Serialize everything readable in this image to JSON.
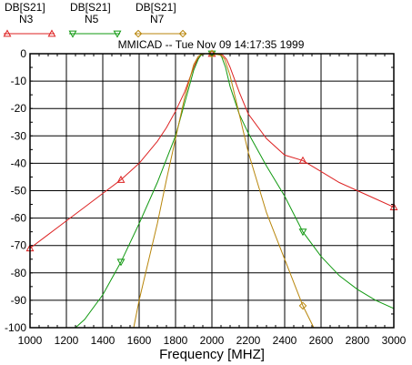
{
  "chart_data": {
    "type": "line",
    "title": "MMICAD -- Tue Nov 09 14:17:35 1999",
    "xlabel": "Frequency [MHZ]",
    "ylabel": "",
    "xlim": [
      1000,
      3000
    ],
    "ylim": [
      -100,
      0
    ],
    "x_ticks": [
      "1000",
      "1200",
      "1400",
      "1600",
      "1800",
      "2000",
      "2200",
      "2400",
      "2600",
      "2800",
      "3000"
    ],
    "y_ticks": [
      "0",
      "-10",
      "-20",
      "-30",
      "-40",
      "-50",
      "-60",
      "-70",
      "-80",
      "-90",
      "-100"
    ],
    "grid": true,
    "legend_position": "top-left",
    "series": [
      {
        "name": "N3",
        "legend_header": "DB[S21]",
        "color": "#dd2222",
        "marker": "triangle-up-icon",
        "x": [
          1000,
          1100,
          1200,
          1300,
          1400,
          1500,
          1600,
          1700,
          1750,
          1800,
          1850,
          1900,
          1920,
          1940,
          1960,
          2000,
          2040,
          2060,
          2080,
          2100,
          2150,
          2200,
          2300,
          2400,
          2500,
          2600,
          2700,
          2800,
          2900,
          3000
        ],
        "y": [
          -71,
          -66,
          -61,
          -56,
          -51,
          -46,
          -40,
          -32,
          -27,
          -21,
          -14,
          -5,
          -2,
          -0.5,
          0,
          0,
          0,
          -0.5,
          -2,
          -5,
          -14,
          -22,
          -31,
          -37,
          -39,
          -43,
          -47,
          -50,
          -53,
          -56
        ],
        "marker_x": [
          1000,
          1500,
          2000,
          2500,
          3000
        ]
      },
      {
        "name": "N5",
        "legend_header": "DB[S21]",
        "color": "#119911",
        "marker": "triangle-down-icon",
        "x": [
          1250,
          1300,
          1400,
          1500,
          1600,
          1700,
          1800,
          1850,
          1900,
          1925,
          1940,
          1960,
          2000,
          2050,
          2075,
          2100,
          2150,
          2200,
          2300,
          2400,
          2500,
          2600,
          2700,
          2800,
          2900,
          3000
        ],
        "y": [
          -100,
          -97,
          -88,
          -76,
          -62,
          -47,
          -30,
          -18,
          -6,
          -2,
          -0.5,
          0,
          0,
          -0.5,
          -5,
          -12,
          -22,
          -29,
          -41,
          -52,
          -65,
          -74,
          -81,
          -86,
          -90,
          -93
        ],
        "marker_x": [
          1500,
          2000,
          2500
        ]
      },
      {
        "name": "N7",
        "legend_header": "DB[S21]",
        "color": "#b8860b",
        "marker": "diamond-icon",
        "x": [
          1570,
          1600,
          1650,
          1700,
          1750,
          1800,
          1850,
          1900,
          1925,
          1940,
          1960,
          2000,
          2050,
          2070,
          2100,
          2150,
          2200,
          2300,
          2400,
          2500,
          2560,
          2600
        ],
        "y": [
          -100,
          -90,
          -76,
          -62,
          -46,
          -31,
          -16,
          -4,
          -1,
          -0.3,
          0,
          0,
          -0.5,
          -2,
          -8,
          -22,
          -36,
          -58,
          -75,
          -92,
          -100,
          -100
        ],
        "marker_x": [
          2000,
          2500
        ]
      }
    ]
  }
}
